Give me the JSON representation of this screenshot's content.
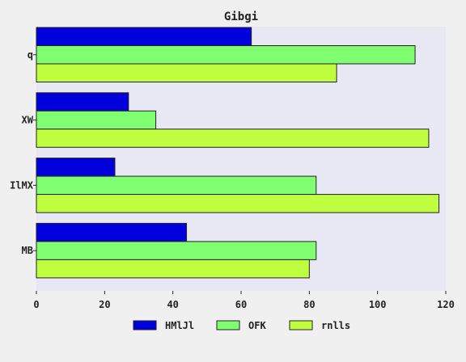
{
  "chart_data": {
    "type": "bar",
    "orientation": "horizontal",
    "title": "Gibgi",
    "xlabel": "",
    "ylabel": "",
    "categories": [
      "q",
      "XW",
      "IlMX",
      "MB"
    ],
    "series": [
      {
        "name": "HMlJl",
        "color": "#0000dd",
        "values": [
          63,
          27,
          23,
          44
        ]
      },
      {
        "name": "OFK",
        "color": "#80ff70",
        "values": [
          111,
          35,
          82,
          82
        ]
      },
      {
        "name": "rnlls",
        "color": "#c0ff40",
        "values": [
          88,
          115,
          118,
          80
        ]
      }
    ],
    "xlim": [
      0,
      120
    ],
    "xticks": [
      0,
      20,
      40,
      60,
      80,
      100,
      120
    ],
    "grid": false,
    "plot_background": "#e8e8f4",
    "legend_position": "bottom"
  }
}
